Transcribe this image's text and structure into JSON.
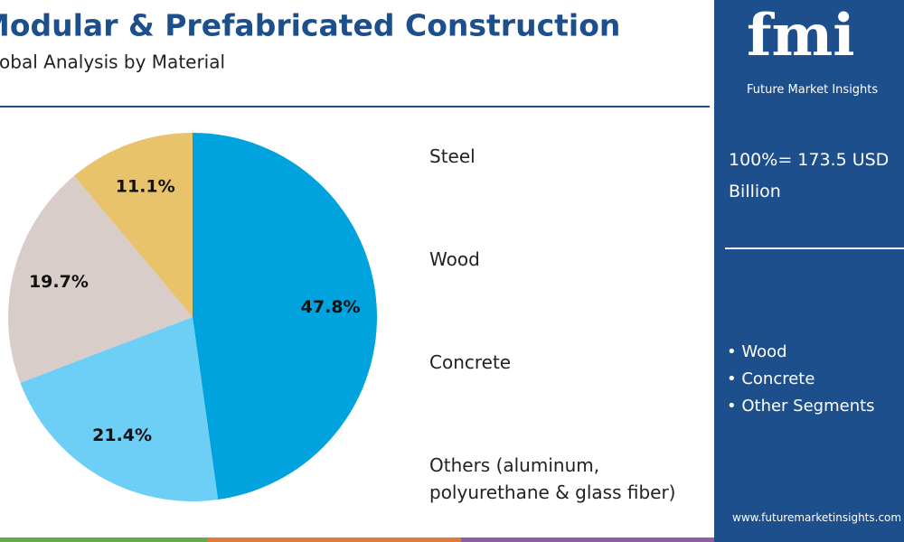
{
  "chart_data": {
    "type": "pie",
    "title": "Modular & Prefabricated Construction",
    "subtitle": "Global Analysis by Material",
    "categories": [
      "Steel",
      "Wood",
      "Concrete",
      "Others (aluminum, polyurethane & glass fiber)"
    ],
    "values": [
      47.8,
      21.4,
      19.7,
      11.1
    ],
    "value_labels": [
      "47.8%",
      "21.4%",
      "19.7%",
      "11.1%"
    ],
    "colors": [
      "#00a3dd",
      "#6dcff6",
      "#d8cdc9",
      "#e8c36b"
    ]
  },
  "sidebar": {
    "logo": "fmi",
    "brand": "Future Market Insights",
    "total": "100%= 173.5 USD Billion",
    "bullets": [
      "Wood",
      "Concrete",
      "Other Segments"
    ],
    "url": "www.futuremarketinsights.com"
  }
}
